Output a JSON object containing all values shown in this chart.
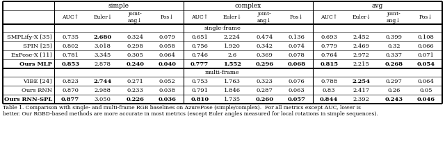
{
  "caption_line1": "Table 1. Comparison with single- and multi-frame RGB baselines on AzurePose (simple/complex).  For all metrics except AUC, lower is",
  "caption_line2": "better. Our RGBD-based methods are more accurate in most metrics (except Euler angles measured for local rotations in simple sequences).",
  "rows_single": [
    {
      "name": "SMPLify-X [35]",
      "values": [
        "0.735",
        "2.680",
        "0.324",
        "0.079",
        "0.651",
        "2.224",
        "0.474",
        "0.136",
        "0.693",
        "2.452",
        "0.399",
        "0.108"
      ],
      "bold": [
        false,
        true,
        false,
        false,
        false,
        false,
        false,
        false,
        false,
        false,
        false,
        false
      ],
      "name_bold": false
    },
    {
      "name": "SPIN [25]",
      "values": [
        "0.802",
        "3.018",
        "0.298",
        "0.058",
        "0.756",
        "1.920",
        "0.342",
        "0.074",
        "0.779",
        "2.469",
        "0.32",
        "0.066"
      ],
      "bold": [
        false,
        false,
        false,
        false,
        false,
        false,
        false,
        false,
        false,
        false,
        false,
        false
      ],
      "name_bold": false
    },
    {
      "name": "ExPose-X [11]",
      "values": [
        "0.781",
        "3.345",
        "0.305",
        "0.064",
        "0.746",
        "2.6",
        "0.369",
        "0.078",
        "0.764",
        "2.972",
        "0.337",
        "0.071"
      ],
      "bold": [
        false,
        false,
        false,
        false,
        false,
        false,
        false,
        false,
        false,
        false,
        false,
        false
      ],
      "name_bold": false
    },
    {
      "name": "Ours MLP",
      "values": [
        "0.853",
        "2.878",
        "0.240",
        "0.040",
        "0.777",
        "1.552",
        "0.296",
        "0.068",
        "0.815",
        "2.215",
        "0.268",
        "0.054"
      ],
      "bold": [
        true,
        false,
        true,
        true,
        true,
        true,
        true,
        true,
        true,
        false,
        true,
        true
      ],
      "name_bold": true
    }
  ],
  "rows_multi": [
    {
      "name": "VIBE [24]",
      "values": [
        "0.823",
        "2.744",
        "0.271",
        "0.052",
        "0.753",
        "1.763",
        "0.323",
        "0.076",
        "0.788",
        "2.254",
        "0.297",
        "0.064"
      ],
      "bold": [
        false,
        true,
        false,
        false,
        false,
        false,
        false,
        false,
        false,
        true,
        false,
        false
      ],
      "name_bold": false
    },
    {
      "name": "Ours RNN",
      "values": [
        "0.870",
        "2.988",
        "0.233",
        "0.038",
        "0.791",
        "1.846",
        "0.287",
        "0.063",
        "0.83",
        "2.417",
        "0.26",
        "0.05"
      ],
      "bold": [
        false,
        false,
        false,
        false,
        false,
        false,
        false,
        false,
        false,
        false,
        false,
        false
      ],
      "name_bold": false
    },
    {
      "name": "Ours RNN-SPL",
      "values": [
        "0.877",
        "3.050",
        "0.226",
        "0.036",
        "0.810",
        "1.735",
        "0.260",
        "0.057",
        "0.844",
        "2.392",
        "0.243",
        "0.046"
      ],
      "bold": [
        true,
        false,
        true,
        true,
        true,
        false,
        true,
        true,
        true,
        false,
        true,
        true
      ],
      "name_bold": true
    }
  ],
  "font_size": 6.0,
  "caption_font_size": 5.5,
  "bg_color": "#ffffff"
}
